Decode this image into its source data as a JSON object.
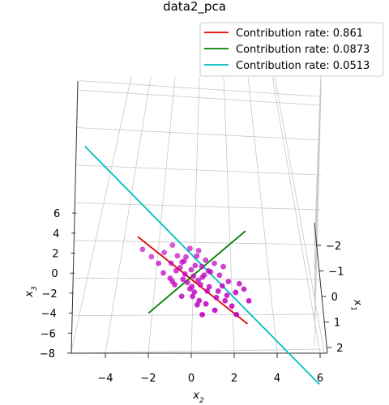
{
  "chart_data": {
    "type": "scatter",
    "projection": "3d",
    "title": "data2_pca",
    "axes": {
      "x1": {
        "label": "x1",
        "ticks": [
          -2,
          -1,
          0,
          1,
          2
        ],
        "lim": [
          -2.5,
          2.3
        ]
      },
      "x2": {
        "label": "x2",
        "ticks": [
          -4,
          -2,
          0,
          2,
          4,
          6
        ],
        "lim": [
          -5.6,
          6.2
        ]
      },
      "x3": {
        "label": "x3",
        "ticks": [
          -8,
          -6,
          -4,
          -2,
          0,
          2,
          4,
          6
        ],
        "lim": [
          -8,
          6.5
        ]
      }
    },
    "grid": true,
    "legend_position": "top-right",
    "points_color": "#c000c0",
    "points": [
      {
        "x1": -0.6,
        "x2": -0.6,
        "x3": 1.4
      },
      {
        "x1": -0.4,
        "x2": -0.4,
        "x3": 1.0
      },
      {
        "x1": 0.4,
        "x2": -0.8,
        "x3": -0.3
      },
      {
        "x1": -0.2,
        "x2": 0.2,
        "x3": 0.9
      },
      {
        "x1": 0.2,
        "x2": 0.5,
        "x3": 0.2
      },
      {
        "x1": -0.8,
        "x2": -1.2,
        "x3": 1.5
      },
      {
        "x1": 0.1,
        "x2": -0.3,
        "x3": 0.4
      },
      {
        "x1": 0.7,
        "x2": 1.2,
        "x3": -0.6
      },
      {
        "x1": 1.0,
        "x2": 1.5,
        "x3": -1.2
      },
      {
        "x1": -0.3,
        "x2": -1.5,
        "x3": 1.0
      },
      {
        "x1": 0.5,
        "x2": 0.8,
        "x3": -0.4
      },
      {
        "x1": -0.1,
        "x2": 0.0,
        "x3": 0.6
      },
      {
        "x1": 0.3,
        "x2": 0.3,
        "x3": 0.0
      },
      {
        "x1": -0.5,
        "x2": -0.9,
        "x3": 0.8
      },
      {
        "x1": 0.6,
        "x2": 0.1,
        "x3": -0.8
      },
      {
        "x1": 1.1,
        "x2": 0.6,
        "x3": -1.4
      },
      {
        "x1": 0.9,
        "x2": 2.0,
        "x3": -0.5
      },
      {
        "x1": -0.7,
        "x2": 0.4,
        "x3": 1.8
      },
      {
        "x1": 0.2,
        "x2": -1.0,
        "x3": 0.1
      },
      {
        "x1": 0.0,
        "x2": 0.9,
        "x3": 0.5
      },
      {
        "x1": 0.4,
        "x2": 1.7,
        "x3": 0.0
      },
      {
        "x1": -0.9,
        "x2": -2.2,
        "x3": 1.7
      },
      {
        "x1": 0.8,
        "x2": 0.0,
        "x3": -1.0
      },
      {
        "x1": 1.3,
        "x2": 1.0,
        "x3": -1.8
      },
      {
        "x1": -0.2,
        "x2": -0.5,
        "x3": 0.7
      },
      {
        "x1": 0.1,
        "x2": 0.6,
        "x3": 0.3
      },
      {
        "x1": 0.6,
        "x2": 1.4,
        "x3": -0.2
      },
      {
        "x1": -0.4,
        "x2": 0.7,
        "x3": 1.2
      },
      {
        "x1": 0.3,
        "x2": -0.2,
        "x3": -0.2
      },
      {
        "x1": 1.5,
        "x2": 0.4,
        "x3": -2.0
      },
      {
        "x1": -0.6,
        "x2": -0.2,
        "x3": 1.3
      },
      {
        "x1": 0.5,
        "x2": 2.2,
        "x3": -0.1
      },
      {
        "x1": 0.0,
        "x2": -1.3,
        "x3": 0.4
      },
      {
        "x1": 0.7,
        "x2": -0.5,
        "x3": -1.1
      },
      {
        "x1": -0.3,
        "x2": 1.1,
        "x3": 1.0
      },
      {
        "x1": 0.9,
        "x2": 0.3,
        "x3": -1.3
      },
      {
        "x1": 0.2,
        "x2": 1.3,
        "x3": 0.4
      },
      {
        "x1": -1.0,
        "x2": -0.8,
        "x3": 2.0
      },
      {
        "x1": 0.4,
        "x2": 0.0,
        "x3": -0.5
      },
      {
        "x1": 1.2,
        "x2": 1.8,
        "x3": -1.5
      },
      {
        "x1": -0.1,
        "x2": -0.7,
        "x3": 0.5
      },
      {
        "x1": 0.6,
        "x2": 0.7,
        "x3": -0.7
      },
      {
        "x1": 0.1,
        "x2": 0.1,
        "x3": 0.2
      },
      {
        "x1": -0.5,
        "x2": 0.3,
        "x3": 1.5
      },
      {
        "x1": 0.8,
        "x2": 1.6,
        "x3": -0.9
      },
      {
        "x1": 0.3,
        "x2": -0.9,
        "x3": -0.1
      },
      {
        "x1": 1.4,
        "x2": 2.0,
        "x3": -2.1
      },
      {
        "x1": -0.2,
        "x2": 0.5,
        "x3": 0.8
      },
      {
        "x1": 0.5,
        "x2": -0.1,
        "x3": -0.6
      },
      {
        "x1": 0.0,
        "x2": 0.8,
        "x3": 0.6
      },
      {
        "x1": -0.7,
        "x2": -1.8,
        "x3": 1.2
      },
      {
        "x1": 0.9,
        "x2": 1.1,
        "x3": -1.0
      },
      {
        "x1": 0.2,
        "x2": -0.4,
        "x3": 0.0
      },
      {
        "x1": 1.0,
        "x2": 0.2,
        "x3": -1.6
      },
      {
        "x1": -0.4,
        "x2": -0.3,
        "x3": 1.1
      },
      {
        "x1": 0.7,
        "x2": 2.4,
        "x3": -0.4
      },
      {
        "x1": -0.1,
        "x2": 1.5,
        "x3": 0.9
      },
      {
        "x1": 0.4,
        "x2": 0.4,
        "x3": -0.3
      },
      {
        "x1": -0.8,
        "x2": 0.0,
        "x3": 1.9
      },
      {
        "x1": 1.1,
        "x2": 2.6,
        "x3": -1.1
      }
    ],
    "components": [
      {
        "name": "Contribution rate: 0.861",
        "color": "#e00000",
        "start": {
          "x1": -1.2,
          "x2": -2.4,
          "x3": 2.6
        },
        "end": {
          "x1": 1.6,
          "x2": 2.5,
          "x3": -2.8
        }
      },
      {
        "name": "Contribution rate: 0.0873",
        "color": "#007f00",
        "start": {
          "x1": 0.1,
          "x2": -2.0,
          "x3": -3.4
        },
        "end": {
          "x1": 0.3,
          "x2": 2.5,
          "x3": 4.8
        }
      },
      {
        "name": "Contribution rate: 0.0513",
        "color": "#00bfbf",
        "start": {
          "x1": -2.0,
          "x2": -4.8,
          "x3": 10.5
        },
        "end": {
          "x1": 2.2,
          "x2": 5.8,
          "x3": -8.0
        }
      }
    ]
  }
}
